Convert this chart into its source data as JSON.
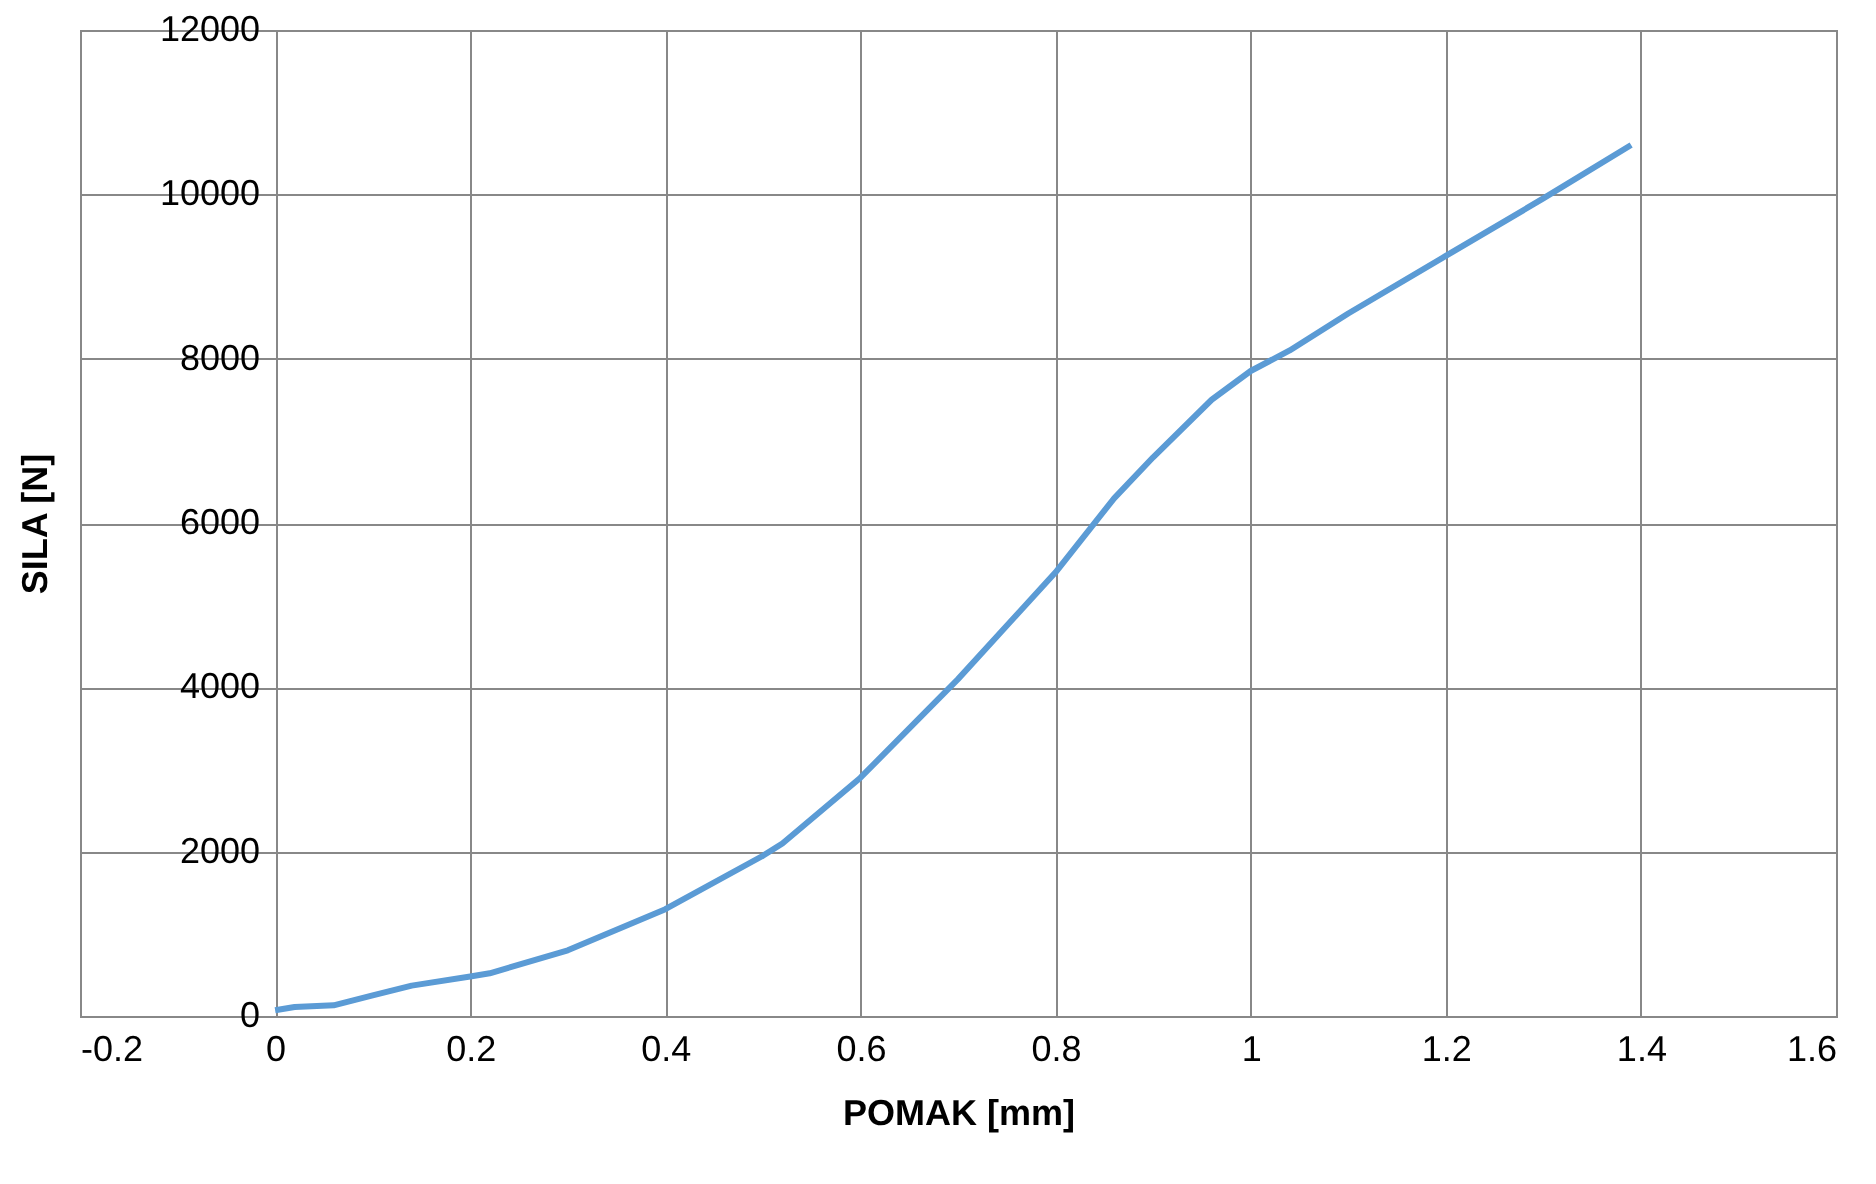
{
  "chart_data": {
    "type": "line",
    "xlabel": "POMAK [mm]",
    "ylabel": "SILA [N]",
    "x": [
      0,
      0.02,
      0.06,
      0.1,
      0.14,
      0.2,
      0.22,
      0.3,
      0.4,
      0.5,
      0.52,
      0.6,
      0.7,
      0.8,
      0.86,
      0.9,
      0.96,
      1.0,
      1.04,
      1.1,
      1.2,
      1.3,
      1.39
    ],
    "series": [
      {
        "color": "#5b9bd5",
        "values": [
          70,
          110,
          130,
          250,
          370,
          480,
          520,
          800,
          1300,
          1950,
          2100,
          2900,
          4100,
          5400,
          6300,
          6800,
          7500,
          7850,
          8100,
          8550,
          9250,
          9950,
          10600
        ]
      }
    ],
    "xlim": [
      -0.2,
      1.6
    ],
    "xticks": [
      -0.2,
      0,
      0.2,
      0.4,
      0.6,
      0.8,
      1,
      1.2,
      1.4,
      1.6
    ],
    "ylim": [
      0,
      12000
    ],
    "yticks": [
      0,
      2000,
      4000,
      6000,
      8000,
      10000,
      12000
    ],
    "grid": true,
    "marker": "none",
    "line_style": "solid"
  }
}
